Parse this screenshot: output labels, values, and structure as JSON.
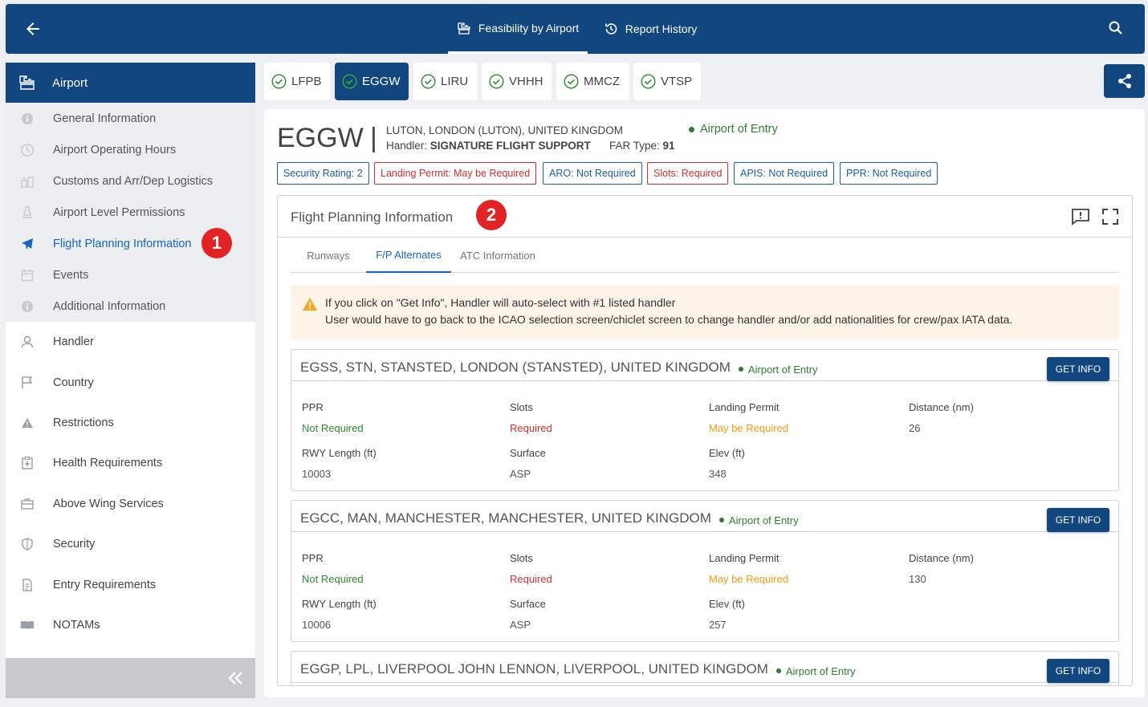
{
  "topbar": {
    "tabs": [
      {
        "label": "Feasibility by Airport"
      },
      {
        "label": "Report History"
      }
    ]
  },
  "sidebar": {
    "header": "Airport",
    "subitems": [
      {
        "label": "General Information"
      },
      {
        "label": "Airport Operating Hours"
      },
      {
        "label": "Customs and Arr/Dep Logistics"
      },
      {
        "label": "Airport Level Permissions"
      },
      {
        "label": "Flight Planning Information"
      },
      {
        "label": "Events"
      },
      {
        "label": "Additional Information"
      }
    ],
    "items": [
      {
        "label": "Handler"
      },
      {
        "label": "Country"
      },
      {
        "label": "Restrictions"
      },
      {
        "label": "Health Requirements"
      },
      {
        "label": "Above Wing Services"
      },
      {
        "label": "Security"
      },
      {
        "label": "Entry Requirements"
      },
      {
        "label": "NOTAMs"
      }
    ]
  },
  "annotations": {
    "one": "1",
    "two": "2"
  },
  "airports": [
    {
      "code": "LFPB"
    },
    {
      "code": "EGGW"
    },
    {
      "code": "LIRU"
    },
    {
      "code": "VHHH"
    },
    {
      "code": "MMCZ"
    },
    {
      "code": "VTSP"
    }
  ],
  "airport": {
    "code": "EGGW",
    "separator": "|",
    "name": "LUTON, LONDON (LUTON), UNITED KINGDOM",
    "handler_label": "Handler:",
    "handler": "SIGNATURE FLIGHT SUPPORT",
    "far_label": "FAR Type:",
    "far": "91",
    "entry": "Airport of Entry"
  },
  "tags": [
    {
      "label": "Security Rating: 2"
    },
    {
      "label": "Landing Permit: May be Required"
    },
    {
      "label": "ARO: Not Required"
    },
    {
      "label": "Slots: Required"
    },
    {
      "label": "APIS: Not Required"
    },
    {
      "label": "PPR: Not Required"
    }
  ],
  "fpi": {
    "title": "Flight Planning Information",
    "tabs": [
      {
        "label": "Runways"
      },
      {
        "label": "F/P Alternates"
      },
      {
        "label": "ATC Information"
      }
    ],
    "warning": {
      "line1": "If you click on \"Get Info\", Handler will auto-select with #1 listed handler",
      "line2": "User would have to go back to the ICAO selection screen/chiclet screen to change handler and/or add nationalities for crew/pax IATA data."
    },
    "button_label": "GET INFO",
    "labels": {
      "ppr": "PPR",
      "slots": "Slots",
      "landing": "Landing Permit",
      "distance": "Distance (nm)",
      "rwy": "RWY Length (ft)",
      "surface": "Surface",
      "elev": "Elev (ft)"
    },
    "alternates": [
      {
        "title": "EGSS, STN, STANSTED, LONDON (STANSTED), UNITED KINGDOM",
        "entry": "Airport of Entry",
        "ppr": "Not Required",
        "slots": "Required",
        "landing": "May be Required",
        "distance": "26",
        "rwy": "10003",
        "surface": "ASP",
        "elev": "348"
      },
      {
        "title": "EGCC, MAN, MANCHESTER, MANCHESTER, UNITED KINGDOM",
        "entry": "Airport of Entry",
        "ppr": "Not Required",
        "slots": "Required",
        "landing": "May be Required",
        "distance": "130",
        "rwy": "10006",
        "surface": "ASP",
        "elev": "257"
      },
      {
        "title": "EGGP, LPL, LIVERPOOL JOHN LENNON, LIVERPOOL, UNITED KINGDOM",
        "entry": "Airport of Entry"
      }
    ]
  }
}
